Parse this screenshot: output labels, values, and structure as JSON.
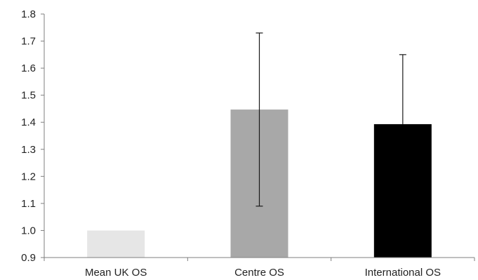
{
  "chart_data": {
    "type": "bar",
    "categories": [
      "Mean UK OS",
      "Centre OS",
      "International OS"
    ],
    "values": [
      1.0,
      1.447,
      1.393
    ],
    "error_bars": [
      null,
      {
        "low": 1.09,
        "high": 1.73
      },
      {
        "high": 1.65
      }
    ],
    "colors": [
      "#e6e6e6",
      "#a8a8a8",
      "#000000"
    ],
    "ylim": [
      0.9,
      1.8
    ],
    "yticks": [
      "0.9",
      "1.0",
      "1.1",
      "1.2",
      "1.3",
      "1.4",
      "1.5",
      "1.6",
      "1.7",
      "1.8"
    ],
    "grid": false,
    "title": "",
    "xlabel": "",
    "ylabel": ""
  }
}
